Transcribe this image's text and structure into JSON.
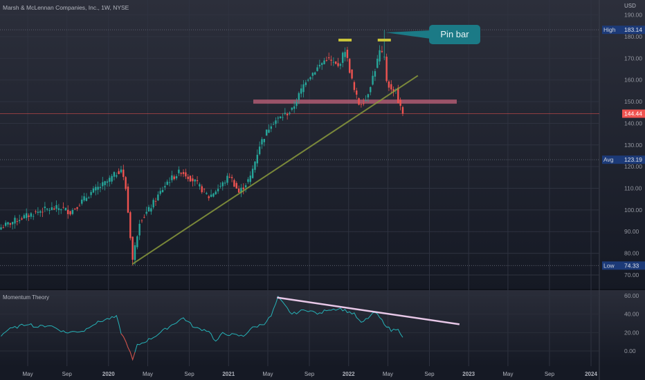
{
  "header": {
    "title": "Marsh & McLennan Companies, Inc., 1W, NYSE",
    "currency": "USD"
  },
  "indicator": {
    "title": "Momentum Theory"
  },
  "annotation": {
    "label": "Pin bar"
  },
  "colors": {
    "up": "#26a69a",
    "down": "#ef5350",
    "trend": "#8a9a3c",
    "band": "#c0627a",
    "marker": "#c9c33a",
    "momentum": "#26b3b8",
    "momentum_low": "#e0433a",
    "mtrend": "#e8c8e8"
  },
  "chart_data": {
    "type": "candlestick",
    "title": "Marsh & McLennan Companies, Inc., 1W, NYSE",
    "price_ylim": [
      65,
      192
    ],
    "price_ticks": [
      "190.00",
      "180.00",
      "170.00",
      "160.00",
      "150.00",
      "140.00",
      "130.00",
      "120.00",
      "110.00",
      "100.00",
      "90.00",
      "80.00",
      "70.00"
    ],
    "price_tick_values": [
      190,
      180,
      170,
      160,
      150,
      140,
      130,
      120,
      110,
      100,
      90,
      80,
      70
    ],
    "labels": [
      {
        "name": "High",
        "value": 183.14,
        "text": "183.14"
      },
      {
        "name": "Avg",
        "value": 123.19,
        "text": "123.19"
      },
      {
        "name": "Low",
        "value": 74.33,
        "text": "74.33"
      }
    ],
    "last_price": {
      "value": 144.44,
      "text": "144.44"
    },
    "x_ticks": [
      "May",
      "Sep",
      "2020",
      "May",
      "Sep",
      "2021",
      "May",
      "Sep",
      "2022",
      "May",
      "Sep",
      "2023",
      "May",
      "Sep",
      "2024"
    ],
    "x_tick_weeks": [
      12,
      29,
      47,
      64,
      82,
      99,
      116,
      134,
      151,
      168,
      186,
      203,
      220,
      238,
      256
    ],
    "close_anchors_week_price": [
      [
        0,
        92
      ],
      [
        8,
        96
      ],
      [
        18,
        100
      ],
      [
        26,
        101
      ],
      [
        30,
        99
      ],
      [
        39,
        108
      ],
      [
        46,
        113
      ],
      [
        52,
        119
      ],
      [
        54,
        110
      ],
      [
        57,
        77
      ],
      [
        60,
        95
      ],
      [
        64,
        100
      ],
      [
        72,
        113
      ],
      [
        78,
        118
      ],
      [
        84,
        113
      ],
      [
        90,
        106
      ],
      [
        96,
        112
      ],
      [
        99,
        116
      ],
      [
        103,
        108
      ],
      [
        108,
        115
      ],
      [
        112,
        130
      ],
      [
        117,
        140
      ],
      [
        126,
        146
      ],
      [
        132,
        160
      ],
      [
        141,
        170
      ],
      [
        146,
        166
      ],
      [
        149,
        174
      ],
      [
        153,
        155
      ],
      [
        155,
        149
      ],
      [
        158,
        151
      ],
      [
        162,
        165
      ],
      [
        164,
        173
      ],
      [
        166,
        170
      ],
      [
        167,
        160
      ],
      [
        169,
        155
      ],
      [
        171,
        156
      ],
      [
        172,
        150
      ],
      [
        174,
        144.44
      ]
    ],
    "pin_bar_week": 166,
    "support_level": 150,
    "trendline_week_price": [
      [
        57,
        75
      ],
      [
        181,
        162
      ]
    ],
    "momentum": {
      "ylim": [
        -14,
        64
      ],
      "ticks": [
        "60.00",
        "40.00",
        "20.00",
        "0.00"
      ],
      "tick_values": [
        60,
        40,
        20,
        0
      ],
      "anchors_week_value": [
        [
          0,
          17
        ],
        [
          3,
          23
        ],
        [
          12,
          30
        ],
        [
          15,
          26
        ],
        [
          21,
          28
        ],
        [
          28,
          20
        ],
        [
          36,
          22
        ],
        [
          39,
          28
        ],
        [
          45,
          34
        ],
        [
          50,
          37
        ],
        [
          52,
          20
        ],
        [
          55,
          5
        ],
        [
          57,
          -10
        ],
        [
          59,
          6
        ],
        [
          66,
          15
        ],
        [
          75,
          30
        ],
        [
          79,
          36
        ],
        [
          84,
          25
        ],
        [
          90,
          22
        ],
        [
          93,
          10
        ],
        [
          96,
          19
        ],
        [
          105,
          16
        ],
        [
          108,
          24
        ],
        [
          114,
          30
        ],
        [
          117,
          38
        ],
        [
          120,
          58
        ],
        [
          126,
          40
        ],
        [
          132,
          45
        ],
        [
          138,
          40
        ],
        [
          141,
          45
        ],
        [
          147,
          46
        ],
        [
          153,
          40
        ],
        [
          156,
          30
        ],
        [
          162,
          42
        ],
        [
          166,
          30
        ],
        [
          169,
          22
        ],
        [
          172,
          25
        ],
        [
          174,
          14
        ]
      ],
      "trendline_week_value": [
        [
          120,
          58
        ],
        [
          199,
          29
        ]
      ]
    }
  }
}
